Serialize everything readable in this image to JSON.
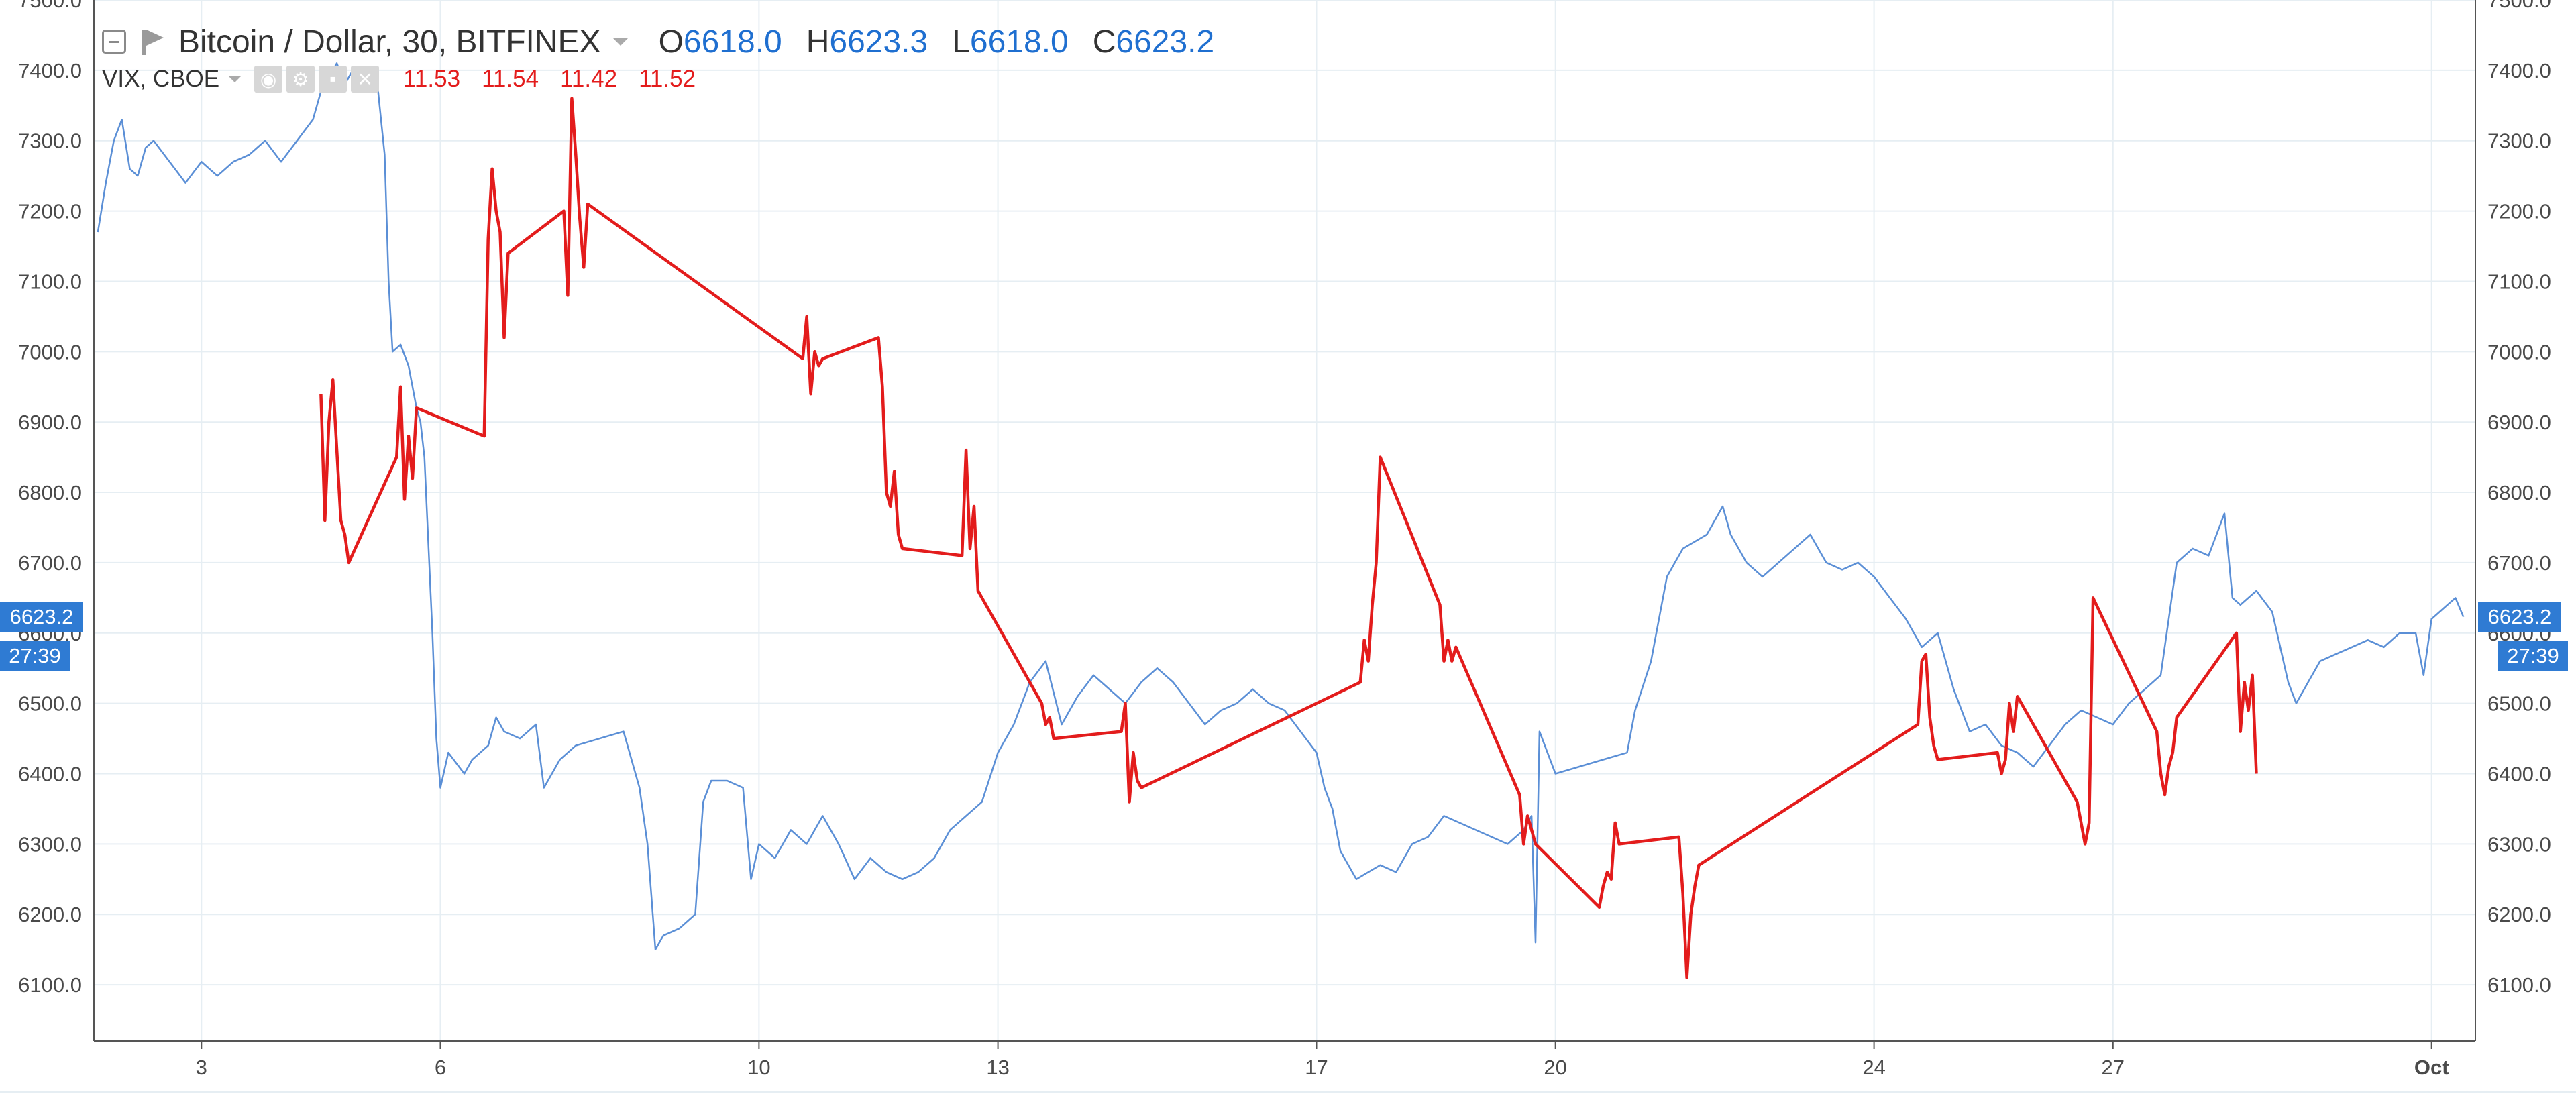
{
  "legend": {
    "symbol": "Bitcoin / Dollar, 30, BITFINEX",
    "o_label": "O",
    "o_value": "6618.0",
    "h_label": "H",
    "h_value": "6623.3",
    "l_label": "L",
    "l_value": "6618.0",
    "c_label": "C",
    "c_value": "6623.2",
    "vix_title": "VIX, CBOE",
    "vix_values": [
      "11.53",
      "11.54",
      "11.42",
      "11.52"
    ]
  },
  "price_tag": {
    "value": "6623.2",
    "countdown": "27:39",
    "color": "#2f7bd3"
  },
  "colors": {
    "btc_line": "#5b8fd6",
    "vix_line": "#e31c1c",
    "grid": "#e6eef3",
    "axis": "#555555"
  },
  "icons": [
    "collapse-icon",
    "flag-icon",
    "dropdown-caret-icon",
    "eye-icon",
    "settings-icon",
    "close-icon"
  ],
  "chart_data": {
    "type": "line",
    "xlabel": "",
    "ylabel": "",
    "ylim": [
      6020,
      7500
    ],
    "xlim": [
      1.65,
      31.55
    ],
    "x_ticks": [
      {
        "x": 3,
        "label": "3"
      },
      {
        "x": 6,
        "label": "6"
      },
      {
        "x": 10,
        "label": "10"
      },
      {
        "x": 13,
        "label": "13"
      },
      {
        "x": 17,
        "label": "17"
      },
      {
        "x": 20,
        "label": "20"
      },
      {
        "x": 24,
        "label": "24"
      },
      {
        "x": 27,
        "label": "27"
      },
      {
        "x": 31,
        "label": "Oct"
      }
    ],
    "y_ticks": [
      6100,
      6200,
      6300,
      6400,
      6500,
      6600,
      6700,
      6800,
      6900,
      7000,
      7100,
      7200,
      7300,
      7400,
      7500
    ],
    "y_tick_labels": [
      "6100.0",
      "6200.0",
      "6300.0",
      "6400.0",
      "6500.0",
      "6600.0",
      "6700.0",
      "6800.0",
      "6900.0",
      "7000.0",
      "7100.0",
      "7200.0",
      "7300.0",
      "7400.0",
      "7500.0"
    ],
    "grid": true,
    "series": [
      {
        "name": "Bitcoin / Dollar, 30, BITFINEX",
        "color": "#5b8fd6",
        "points": [
          [
            1.7,
            7170
          ],
          [
            1.8,
            7240
          ],
          [
            1.9,
            7300
          ],
          [
            2.0,
            7330
          ],
          [
            2.1,
            7260
          ],
          [
            2.2,
            7250
          ],
          [
            2.3,
            7290
          ],
          [
            2.4,
            7300
          ],
          [
            2.6,
            7270
          ],
          [
            2.8,
            7240
          ],
          [
            3.0,
            7270
          ],
          [
            3.2,
            7250
          ],
          [
            3.4,
            7270
          ],
          [
            3.6,
            7280
          ],
          [
            3.8,
            7300
          ],
          [
            4.0,
            7270
          ],
          [
            4.2,
            7300
          ],
          [
            4.4,
            7330
          ],
          [
            4.5,
            7370
          ],
          [
            4.6,
            7390
          ],
          [
            4.7,
            7410
          ],
          [
            4.8,
            7380
          ],
          [
            4.9,
            7400
          ],
          [
            5.0,
            7390
          ],
          [
            5.2,
            7390
          ],
          [
            5.3,
            7280
          ],
          [
            5.35,
            7100
          ],
          [
            5.4,
            7000
          ],
          [
            5.5,
            7010
          ],
          [
            5.6,
            6980
          ],
          [
            5.7,
            6920
          ],
          [
            5.75,
            6900
          ],
          [
            5.8,
            6850
          ],
          [
            5.9,
            6600
          ],
          [
            5.95,
            6450
          ],
          [
            6.0,
            6380
          ],
          [
            6.1,
            6430
          ],
          [
            6.3,
            6400
          ],
          [
            6.4,
            6420
          ],
          [
            6.6,
            6440
          ],
          [
            6.7,
            6480
          ],
          [
            6.8,
            6460
          ],
          [
            7.0,
            6450
          ],
          [
            7.2,
            6470
          ],
          [
            7.3,
            6380
          ],
          [
            7.5,
            6420
          ],
          [
            7.7,
            6440
          ],
          [
            8.0,
            6450
          ],
          [
            8.3,
            6460
          ],
          [
            8.5,
            6380
          ],
          [
            8.6,
            6300
          ],
          [
            8.7,
            6150
          ],
          [
            8.8,
            6170
          ],
          [
            9.0,
            6180
          ],
          [
            9.2,
            6200
          ],
          [
            9.3,
            6360
          ],
          [
            9.4,
            6390
          ],
          [
            9.6,
            6390
          ],
          [
            9.8,
            6380
          ],
          [
            9.9,
            6250
          ],
          [
            10.0,
            6300
          ],
          [
            10.2,
            6280
          ],
          [
            10.4,
            6320
          ],
          [
            10.6,
            6300
          ],
          [
            10.8,
            6340
          ],
          [
            11.0,
            6300
          ],
          [
            11.2,
            6250
          ],
          [
            11.4,
            6280
          ],
          [
            11.6,
            6260
          ],
          [
            11.8,
            6250
          ],
          [
            12.0,
            6260
          ],
          [
            12.2,
            6280
          ],
          [
            12.4,
            6320
          ],
          [
            12.6,
            6340
          ],
          [
            12.8,
            6360
          ],
          [
            13.0,
            6430
          ],
          [
            13.2,
            6470
          ],
          [
            13.4,
            6530
          ],
          [
            13.6,
            6560
          ],
          [
            13.8,
            6470
          ],
          [
            14.0,
            6510
          ],
          [
            14.2,
            6540
          ],
          [
            14.4,
            6520
          ],
          [
            14.6,
            6500
          ],
          [
            14.8,
            6530
          ],
          [
            15.0,
            6550
          ],
          [
            15.2,
            6530
          ],
          [
            15.4,
            6500
          ],
          [
            15.6,
            6470
          ],
          [
            15.8,
            6490
          ],
          [
            16.0,
            6500
          ],
          [
            16.2,
            6520
          ],
          [
            16.4,
            6500
          ],
          [
            16.6,
            6490
          ],
          [
            16.8,
            6460
          ],
          [
            17.0,
            6430
          ],
          [
            17.1,
            6380
          ],
          [
            17.2,
            6350
          ],
          [
            17.3,
            6290
          ],
          [
            17.5,
            6250
          ],
          [
            17.8,
            6270
          ],
          [
            18.0,
            6260
          ],
          [
            18.2,
            6300
          ],
          [
            18.4,
            6310
          ],
          [
            18.6,
            6340
          ],
          [
            18.8,
            6330
          ],
          [
            19.0,
            6320
          ],
          [
            19.2,
            6310
          ],
          [
            19.4,
            6300
          ],
          [
            19.6,
            6320
          ],
          [
            19.7,
            6340
          ],
          [
            19.75,
            6160
          ],
          [
            19.8,
            6460
          ],
          [
            20.0,
            6400
          ],
          [
            20.3,
            6410
          ],
          [
            20.6,
            6420
          ],
          [
            20.9,
            6430
          ],
          [
            21.0,
            6490
          ],
          [
            21.2,
            6560
          ],
          [
            21.3,
            6620
          ],
          [
            21.4,
            6680
          ],
          [
            21.6,
            6720
          ],
          [
            21.9,
            6740
          ],
          [
            22.1,
            6780
          ],
          [
            22.2,
            6740
          ],
          [
            22.4,
            6700
          ],
          [
            22.6,
            6680
          ],
          [
            22.8,
            6700
          ],
          [
            23.0,
            6720
          ],
          [
            23.2,
            6740
          ],
          [
            23.4,
            6700
          ],
          [
            23.6,
            6690
          ],
          [
            23.8,
            6700
          ],
          [
            24.0,
            6680
          ],
          [
            24.2,
            6650
          ],
          [
            24.4,
            6620
          ],
          [
            24.6,
            6580
          ],
          [
            24.8,
            6600
          ],
          [
            25.0,
            6520
          ],
          [
            25.2,
            6460
          ],
          [
            25.4,
            6470
          ],
          [
            25.6,
            6440
          ],
          [
            25.8,
            6430
          ],
          [
            26.0,
            6410
          ],
          [
            26.2,
            6440
          ],
          [
            26.4,
            6470
          ],
          [
            26.6,
            6490
          ],
          [
            26.8,
            6480
          ],
          [
            27.0,
            6470
          ],
          [
            27.2,
            6500
          ],
          [
            27.4,
            6520
          ],
          [
            27.6,
            6540
          ],
          [
            27.8,
            6700
          ],
          [
            28.0,
            6720
          ],
          [
            28.2,
            6710
          ],
          [
            28.4,
            6770
          ],
          [
            28.5,
            6650
          ],
          [
            28.6,
            6640
          ],
          [
            28.8,
            6660
          ],
          [
            29.0,
            6630
          ],
          [
            29.2,
            6530
          ],
          [
            29.3,
            6500
          ],
          [
            29.4,
            6520
          ],
          [
            29.6,
            6560
          ],
          [
            29.8,
            6570
          ],
          [
            30.0,
            6580
          ],
          [
            30.2,
            6590
          ],
          [
            30.4,
            6580
          ],
          [
            30.6,
            6600
          ],
          [
            30.8,
            6600
          ],
          [
            30.9,
            6540
          ],
          [
            31.0,
            6620
          ],
          [
            31.2,
            6640
          ],
          [
            31.3,
            6650
          ],
          [
            31.4,
            6623
          ]
        ]
      },
      {
        "name": "VIX, CBOE",
        "color": "#e31c1c",
        "points": [
          [
            4.5,
            6940
          ],
          [
            4.55,
            6760
          ],
          [
            4.6,
            6900
          ],
          [
            4.65,
            6960
          ],
          [
            4.7,
            6860
          ],
          [
            4.75,
            6760
          ],
          [
            4.8,
            6740
          ],
          [
            4.85,
            6700
          ],
          [
            5.45,
            6850
          ],
          [
            5.5,
            6950
          ],
          [
            5.55,
            6790
          ],
          [
            5.6,
            6880
          ],
          [
            5.65,
            6820
          ],
          [
            5.7,
            6920
          ],
          [
            6.55,
            6880
          ],
          [
            6.6,
            7160
          ],
          [
            6.65,
            7260
          ],
          [
            6.7,
            7200
          ],
          [
            6.75,
            7170
          ],
          [
            6.8,
            7020
          ],
          [
            6.85,
            7140
          ],
          [
            7.55,
            7200
          ],
          [
            7.6,
            7080
          ],
          [
            7.65,
            7360
          ],
          [
            7.7,
            7280
          ],
          [
            7.75,
            7190
          ],
          [
            7.8,
            7120
          ],
          [
            7.85,
            7210
          ],
          [
            10.55,
            6990
          ],
          [
            10.6,
            7050
          ],
          [
            10.65,
            6940
          ],
          [
            10.7,
            7000
          ],
          [
            10.75,
            6980
          ],
          [
            10.8,
            6990
          ],
          [
            11.5,
            7020
          ],
          [
            11.55,
            6950
          ],
          [
            11.6,
            6800
          ],
          [
            11.65,
            6780
          ],
          [
            11.7,
            6830
          ],
          [
            11.75,
            6740
          ],
          [
            11.8,
            6720
          ],
          [
            12.55,
            6710
          ],
          [
            12.6,
            6860
          ],
          [
            12.65,
            6720
          ],
          [
            12.7,
            6780
          ],
          [
            12.75,
            6660
          ],
          [
            13.55,
            6500
          ],
          [
            13.6,
            6470
          ],
          [
            13.65,
            6480
          ],
          [
            13.7,
            6450
          ],
          [
            14.55,
            6460
          ],
          [
            14.6,
            6500
          ],
          [
            14.65,
            6360
          ],
          [
            14.7,
            6430
          ],
          [
            14.75,
            6390
          ],
          [
            14.8,
            6380
          ],
          [
            17.55,
            6530
          ],
          [
            17.6,
            6590
          ],
          [
            17.65,
            6560
          ],
          [
            17.7,
            6640
          ],
          [
            17.75,
            6700
          ],
          [
            17.8,
            6850
          ],
          [
            18.55,
            6640
          ],
          [
            18.6,
            6560
          ],
          [
            18.65,
            6590
          ],
          [
            18.7,
            6560
          ],
          [
            18.75,
            6580
          ],
          [
            19.55,
            6370
          ],
          [
            19.6,
            6300
          ],
          [
            19.65,
            6340
          ],
          [
            19.7,
            6320
          ],
          [
            19.75,
            6300
          ],
          [
            20.55,
            6210
          ],
          [
            20.6,
            6240
          ],
          [
            20.65,
            6260
          ],
          [
            20.7,
            6250
          ],
          [
            20.75,
            6330
          ],
          [
            20.8,
            6300
          ],
          [
            21.55,
            6310
          ],
          [
            21.6,
            6230
          ],
          [
            21.65,
            6110
          ],
          [
            21.7,
            6200
          ],
          [
            21.75,
            6240
          ],
          [
            21.8,
            6270
          ],
          [
            24.55,
            6470
          ],
          [
            24.6,
            6560
          ],
          [
            24.65,
            6570
          ],
          [
            24.7,
            6480
          ],
          [
            24.75,
            6440
          ],
          [
            24.8,
            6420
          ],
          [
            25.55,
            6430
          ],
          [
            25.6,
            6400
          ],
          [
            25.65,
            6420
          ],
          [
            25.7,
            6500
          ],
          [
            25.75,
            6460
          ],
          [
            25.8,
            6510
          ],
          [
            26.55,
            6360
          ],
          [
            26.6,
            6330
          ],
          [
            26.65,
            6300
          ],
          [
            26.7,
            6330
          ],
          [
            26.75,
            6650
          ],
          [
            27.55,
            6460
          ],
          [
            27.6,
            6400
          ],
          [
            27.65,
            6370
          ],
          [
            27.7,
            6410
          ],
          [
            27.75,
            6430
          ],
          [
            27.8,
            6480
          ],
          [
            28.55,
            6600
          ],
          [
            28.6,
            6460
          ],
          [
            28.65,
            6530
          ],
          [
            28.7,
            6490
          ],
          [
            28.75,
            6540
          ],
          [
            28.8,
            6400
          ]
        ]
      }
    ]
  }
}
